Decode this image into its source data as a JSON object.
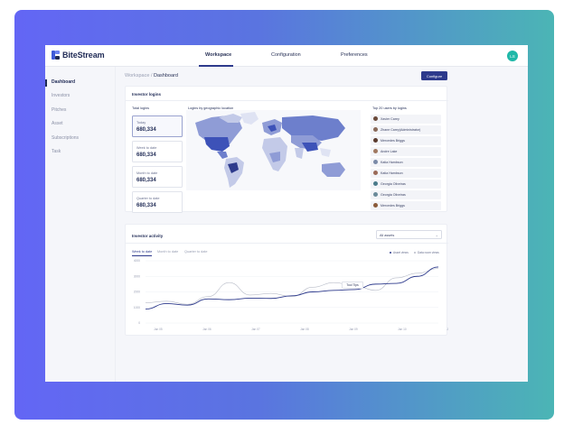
{
  "brand": {
    "name": "BiteStream",
    "logo_colors": [
      "#3f5bd8",
      "#6c83f0",
      "#1f2a55"
    ]
  },
  "top_nav": [
    {
      "label": "Workspace",
      "active": true
    },
    {
      "label": "Configuration",
      "active": false
    },
    {
      "label": "Preferences",
      "active": false
    }
  ],
  "user": {
    "initials": "LS",
    "color": "#1fb8a8"
  },
  "sidebar": {
    "items": [
      {
        "label": "Dashboard",
        "active": true
      },
      {
        "label": "Investors",
        "active": false
      },
      {
        "label": "Pitches",
        "active": false
      },
      {
        "label": "Asset",
        "active": false
      },
      {
        "label": "Subscriptions",
        "active": false
      },
      {
        "label": "Task",
        "active": false
      }
    ]
  },
  "breadcrumb": {
    "parent": "Workspace",
    "separator": "/",
    "current": "Dashboard"
  },
  "configure_button": "Configure",
  "investor_logins": {
    "title": "Investor logins",
    "total_logins_title": "Total logins",
    "stats": [
      {
        "label": "Today",
        "value": "680,334",
        "active": true
      },
      {
        "label": "Week to date",
        "value": "680,334",
        "active": false
      },
      {
        "label": "Month to date",
        "value": "680,334",
        "active": false
      },
      {
        "label": "Quarter to date",
        "value": "680,334",
        "active": false
      }
    ],
    "map_title": "Logins by geographic location",
    "top_users_title": "Top 20 users by logins",
    "top_users": [
      {
        "name": "Xavier Carey",
        "color": "#6b4a3a"
      },
      {
        "name": "Zhane Carey(Administrator)",
        "color": "#8a6a5a"
      },
      {
        "name": "Mercedes Briggs",
        "color": "#5a3b2f"
      },
      {
        "name": "Andre Lake",
        "color": "#a07860"
      },
      {
        "name": "Katia Hambson",
        "color": "#7a8aa8"
      },
      {
        "name": "Katia Hambson",
        "color": "#9a6a58"
      },
      {
        "name": "Georgia Oliveiras",
        "color": "#4a7a8a"
      },
      {
        "name": "Georgia Oliveiras",
        "color": "#6a8a9a"
      },
      {
        "name": "Mercedes Briggs",
        "color": "#8a5a3a"
      }
    ]
  },
  "investor_activity": {
    "title": "Investor activity",
    "dropdown_value": "All assets",
    "tabs": [
      {
        "label": "Week to date",
        "active": true
      },
      {
        "label": "Month to date",
        "active": false
      },
      {
        "label": "Quarter to date",
        "active": false
      }
    ],
    "legend": [
      {
        "label": "Asset views",
        "color": "#2d3a8c"
      },
      {
        "label": "Data room views",
        "color": "#b8bcc8"
      }
    ],
    "tooltip": "Tool Tips",
    "chart_data": {
      "type": "line",
      "ylim": [
        0,
        4000
      ],
      "y_ticks": [
        "4000",
        "3000",
        "2000",
        "1000",
        "0"
      ],
      "x_ticks": [
        "Jan 05",
        "Jan 06",
        "Jan 07",
        "Jan 08",
        "Jan 09",
        "Jan 10",
        "Jan 11"
      ],
      "x": [
        0,
        0.5,
        1,
        1.5,
        2,
        2.5,
        3,
        3.5,
        4,
        4.5,
        5,
        5.5,
        6,
        6.5,
        7
      ],
      "series": [
        {
          "name": "Asset views",
          "color": "#2d3a8c",
          "values": [
            900,
            1250,
            1150,
            1550,
            1500,
            1600,
            1580,
            1750,
            2000,
            2100,
            2150,
            2500,
            2550,
            3000,
            3600
          ]
        },
        {
          "name": "Data room views",
          "color": "#b8bcc8",
          "values": [
            1300,
            1400,
            1200,
            1700,
            2600,
            1800,
            1900,
            1700,
            2300,
            2600,
            2400,
            2100,
            2900,
            3200,
            3500
          ]
        }
      ]
    }
  }
}
